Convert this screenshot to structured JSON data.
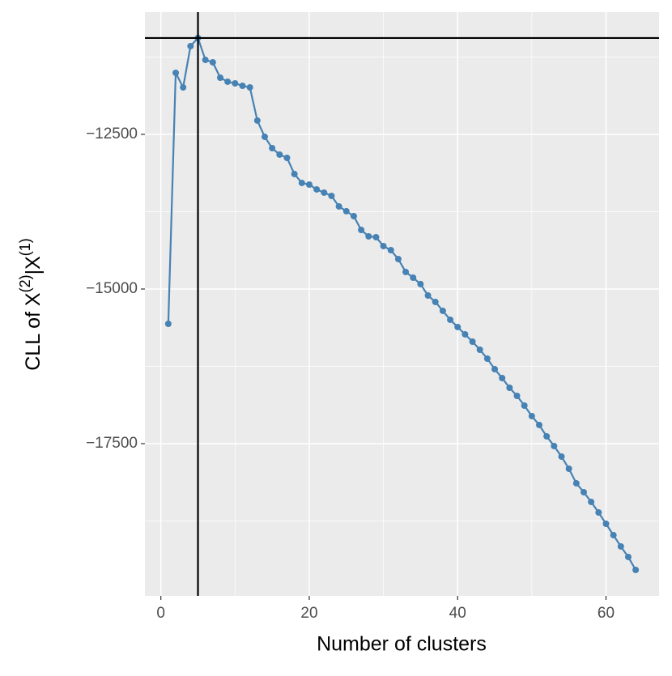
{
  "chart_data": {
    "type": "line",
    "x_label": "Number of clusters",
    "y_label": [
      "CLL of X",
      "(2)",
      "|X",
      "(1)"
    ],
    "x": [
      1,
      2,
      3,
      4,
      5,
      6,
      7,
      8,
      9,
      10,
      11,
      12,
      13,
      14,
      15,
      16,
      17,
      18,
      19,
      20,
      21,
      22,
      23,
      24,
      25,
      26,
      27,
      28,
      29,
      30,
      31,
      32,
      33,
      34,
      35,
      36,
      37,
      38,
      39,
      40,
      41,
      42,
      43,
      44,
      45,
      46,
      47,
      48,
      49,
      50,
      51,
      52,
      53,
      54,
      55,
      56,
      57,
      58,
      59,
      60,
      61,
      62,
      63,
      64
    ],
    "series": [
      {
        "color": "#4682b4",
        "values": [
          -15563,
          -11505,
          -11741,
          -11073,
          -10942,
          -11296,
          -11335,
          -11584,
          -11649,
          -11675,
          -11715,
          -11741,
          -12277,
          -12539,
          -12723,
          -12827,
          -12880,
          -13141,
          -13285,
          -13312,
          -13390,
          -13442,
          -13495,
          -13665,
          -13743,
          -13822,
          -14045,
          -14149,
          -14162,
          -14306,
          -14372,
          -14516,
          -14725,
          -14817,
          -14921,
          -15105,
          -15209,
          -15353,
          -15497,
          -15615,
          -15733,
          -15851,
          -15982,
          -16126,
          -16296,
          -16440,
          -16597,
          -16728,
          -16885,
          -17055,
          -17199,
          -17382,
          -17539,
          -17709,
          -17906,
          -18141,
          -18285,
          -18442,
          -18613,
          -18796,
          -18979,
          -19162,
          -19332,
          -19542
        ]
      }
    ],
    "xlim": [
      -2.15,
      67.15
    ],
    "ylim": [
      -19961,
      -10524
    ],
    "xticks": [
      0,
      20,
      40,
      60
    ],
    "yticks": [
      {
        "value": -17500,
        "label": "−17500"
      },
      {
        "value": -15000,
        "label": "−15000"
      },
      {
        "value": -12500,
        "label": "−12500"
      }
    ],
    "x_minor_ticks": [
      10,
      30,
      50
    ],
    "y_minor_ticks": [
      -18750,
      -16250,
      -13750,
      -11250
    ],
    "vline": 5,
    "hline": -10942,
    "grid": true,
    "panel_color": "#ebebeb"
  }
}
